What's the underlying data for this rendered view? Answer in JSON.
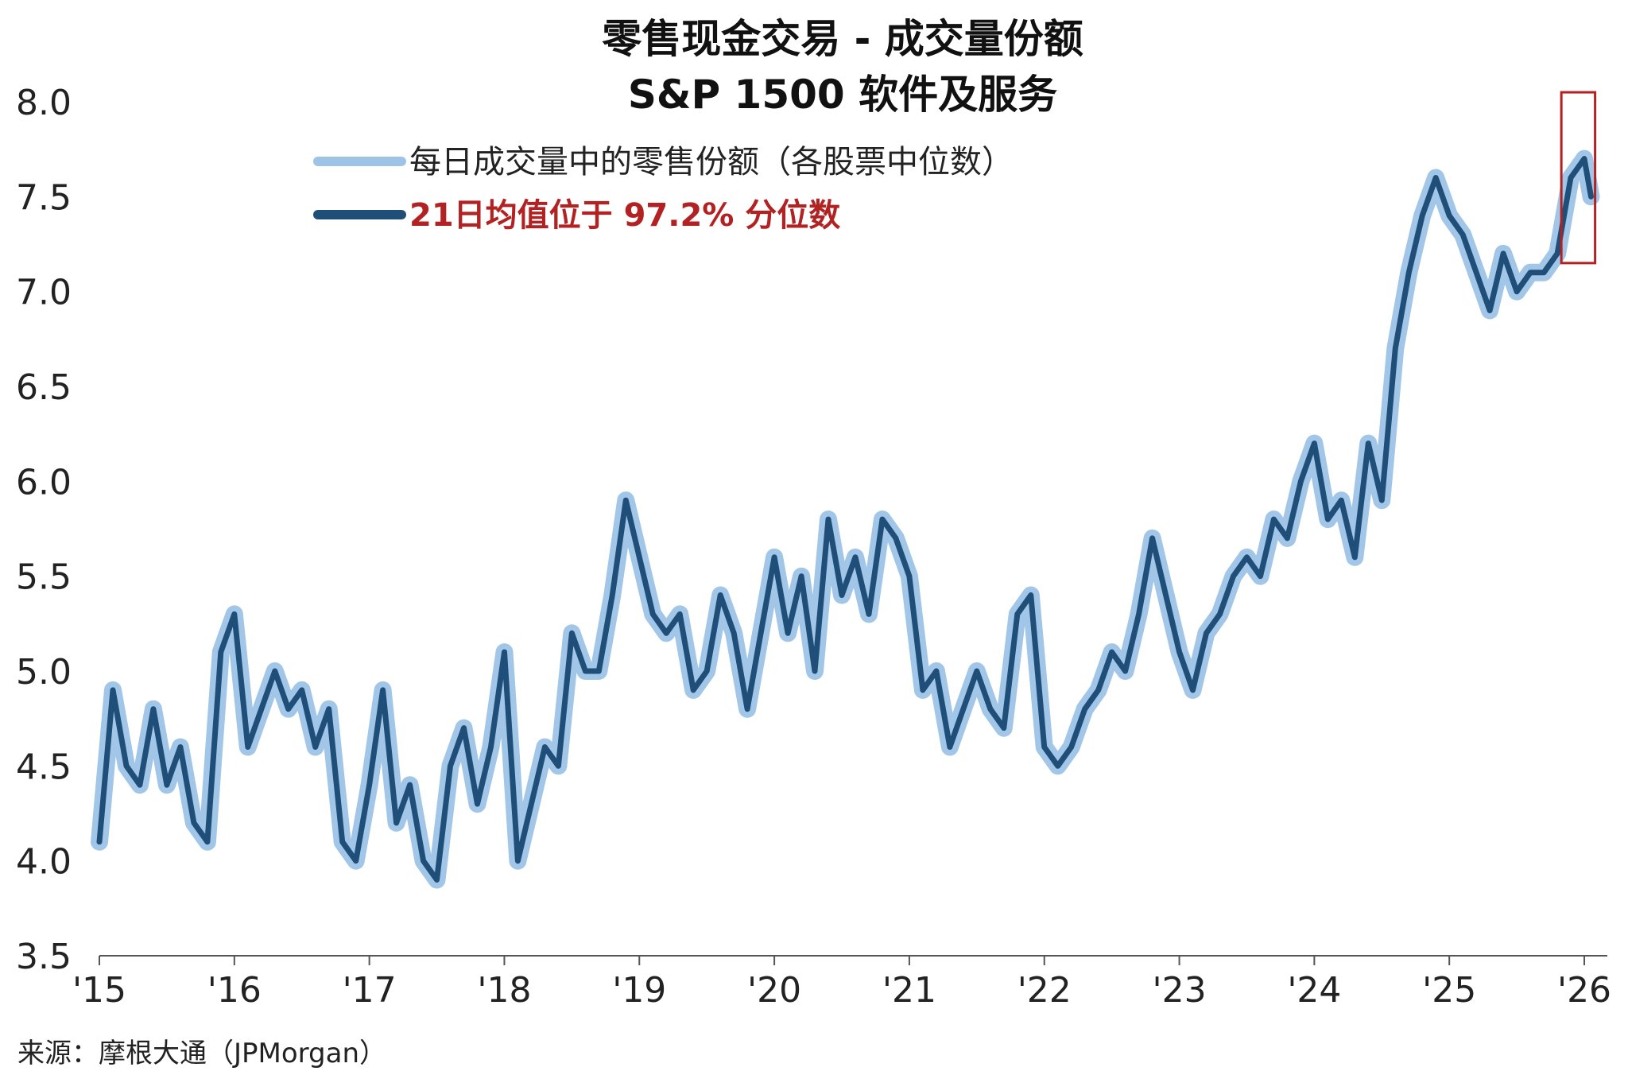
{
  "chart_data": {
    "type": "line",
    "title": "零售现金交易 - 成交量份额",
    "subtitle": "S&P 1500 软件及服务",
    "xlabel": "",
    "ylabel": "",
    "ylim": [
      3.5,
      8.0
    ],
    "yticks": [
      "8.0",
      "7.5",
      "7.0",
      "6.5",
      "6.0",
      "5.5",
      "5.0",
      "4.5",
      "4.0",
      "3.5"
    ],
    "xlim": [
      2015.0,
      2026.1
    ],
    "xticks": [
      {
        "label": "'15",
        "value": 2015
      },
      {
        "label": "'16",
        "value": 2016
      },
      {
        "label": "'17",
        "value": 2017
      },
      {
        "label": "'18",
        "value": 2018
      },
      {
        "label": "'19",
        "value": 2019
      },
      {
        "label": "'20",
        "value": 2020
      },
      {
        "label": "'21",
        "value": 2021
      },
      {
        "label": "'22",
        "value": 2022
      },
      {
        "label": "'23",
        "value": 2023
      },
      {
        "label": "'24",
        "value": 2024
      },
      {
        "label": "'25",
        "value": 2025
      },
      {
        "label": "'26",
        "value": 2026
      }
    ],
    "grid": false,
    "legend_position": "top-left",
    "source": "来源：摩根大通（JPMorgan）",
    "highlight_box": {
      "x_range": [
        2025.83,
        2026.08
      ],
      "y_range": [
        7.15,
        8.05
      ],
      "color": "#b22222"
    },
    "series": [
      {
        "name": "每日成交量中的零售份额（各股票中位数）",
        "color": "#9dc3e6",
        "style": "daily",
        "x": [
          2015.0,
          2015.1,
          2015.2,
          2015.3,
          2015.4,
          2015.5,
          2015.6,
          2015.7,
          2015.8,
          2015.9,
          2016.0,
          2016.1,
          2016.2,
          2016.3,
          2016.4,
          2016.5,
          2016.6,
          2016.7,
          2016.8,
          2016.9,
          2017.0,
          2017.1,
          2017.2,
          2017.3,
          2017.4,
          2017.5,
          2017.6,
          2017.7,
          2017.8,
          2017.9,
          2018.0,
          2018.1,
          2018.2,
          2018.3,
          2018.4,
          2018.5,
          2018.6,
          2018.7,
          2018.8,
          2018.9,
          2019.0,
          2019.1,
          2019.2,
          2019.3,
          2019.4,
          2019.5,
          2019.6,
          2019.7,
          2019.8,
          2019.9,
          2020.0,
          2020.1,
          2020.2,
          2020.3,
          2020.4,
          2020.5,
          2020.6,
          2020.7,
          2020.8,
          2020.9,
          2021.0,
          2021.1,
          2021.2,
          2021.3,
          2021.4,
          2021.5,
          2021.6,
          2021.7,
          2021.8,
          2021.9,
          2022.0,
          2022.1,
          2022.2,
          2022.3,
          2022.4,
          2022.5,
          2022.6,
          2022.7,
          2022.8,
          2022.9,
          2023.0,
          2023.1,
          2023.2,
          2023.3,
          2023.4,
          2023.5,
          2023.6,
          2023.7,
          2023.8,
          2023.9,
          2024.0,
          2024.1,
          2024.2,
          2024.3,
          2024.4,
          2024.5,
          2024.6,
          2024.7,
          2024.8,
          2024.9,
          2025.0,
          2025.1,
          2025.2,
          2025.3,
          2025.4,
          2025.5,
          2025.6,
          2025.7,
          2025.8,
          2025.9,
          2026.0,
          2026.05
        ],
        "y": [
          4.1,
          4.9,
          4.5,
          4.4,
          4.8,
          4.4,
          4.6,
          4.2,
          4.1,
          5.1,
          5.3,
          4.6,
          4.8,
          5.0,
          4.8,
          4.9,
          4.6,
          4.8,
          4.1,
          4.0,
          4.4,
          4.9,
          4.2,
          4.4,
          4.0,
          3.9,
          4.5,
          4.7,
          4.3,
          4.6,
          5.1,
          4.0,
          4.3,
          4.6,
          4.5,
          5.2,
          5.0,
          5.0,
          5.4,
          5.9,
          5.6,
          5.3,
          5.2,
          5.3,
          4.9,
          5.0,
          5.4,
          5.2,
          4.8,
          5.2,
          5.6,
          5.2,
          5.5,
          5.0,
          5.8,
          5.4,
          5.6,
          5.3,
          5.8,
          5.7,
          5.5,
          4.9,
          5.0,
          4.6,
          4.8,
          5.0,
          4.8,
          4.7,
          5.3,
          5.4,
          4.6,
          4.5,
          4.6,
          4.8,
          4.9,
          5.1,
          5.0,
          5.3,
          5.7,
          5.4,
          5.1,
          4.9,
          5.2,
          5.3,
          5.5,
          5.6,
          5.5,
          5.8,
          5.7,
          6.0,
          6.2,
          5.8,
          5.9,
          5.6,
          6.2,
          5.9,
          6.7,
          7.1,
          7.4,
          7.6,
          7.4,
          7.3,
          7.1,
          6.9,
          7.2,
          7.0,
          7.1,
          7.1,
          7.2,
          7.6,
          7.7,
          7.5
        ]
      },
      {
        "name": "21日均值位于 97.2% 分位数",
        "color": "#1f4e79",
        "style": "rolling",
        "x": [
          2015.0,
          2015.1,
          2015.2,
          2015.3,
          2015.4,
          2015.5,
          2015.6,
          2015.7,
          2015.8,
          2015.9,
          2016.0,
          2016.1,
          2016.2,
          2016.3,
          2016.4,
          2016.5,
          2016.6,
          2016.7,
          2016.8,
          2016.9,
          2017.0,
          2017.1,
          2017.2,
          2017.3,
          2017.4,
          2017.5,
          2017.6,
          2017.7,
          2017.8,
          2017.9,
          2018.0,
          2018.1,
          2018.2,
          2018.3,
          2018.4,
          2018.5,
          2018.6,
          2018.7,
          2018.8,
          2018.9,
          2019.0,
          2019.1,
          2019.2,
          2019.3,
          2019.4,
          2019.5,
          2019.6,
          2019.7,
          2019.8,
          2019.9,
          2020.0,
          2020.1,
          2020.2,
          2020.3,
          2020.4,
          2020.5,
          2020.6,
          2020.7,
          2020.8,
          2020.9,
          2021.0,
          2021.1,
          2021.2,
          2021.3,
          2021.4,
          2021.5,
          2021.6,
          2021.7,
          2021.8,
          2021.9,
          2022.0,
          2022.1,
          2022.2,
          2022.3,
          2022.4,
          2022.5,
          2022.6,
          2022.7,
          2022.8,
          2022.9,
          2023.0,
          2023.1,
          2023.2,
          2023.3,
          2023.4,
          2023.5,
          2023.6,
          2023.7,
          2023.8,
          2023.9,
          2024.0,
          2024.1,
          2024.2,
          2024.3,
          2024.4,
          2024.5,
          2024.6,
          2024.7,
          2024.8,
          2024.9,
          2025.0,
          2025.1,
          2025.2,
          2025.3,
          2025.4,
          2025.5,
          2025.6,
          2025.7,
          2025.8,
          2025.9,
          2026.0,
          2026.05
        ],
        "y": [
          4.1,
          4.9,
          4.5,
          4.4,
          4.8,
          4.4,
          4.6,
          4.2,
          4.1,
          5.1,
          5.3,
          4.6,
          4.8,
          5.0,
          4.8,
          4.9,
          4.6,
          4.8,
          4.1,
          4.0,
          4.4,
          4.9,
          4.2,
          4.4,
          4.0,
          3.9,
          4.5,
          4.7,
          4.3,
          4.6,
          5.1,
          4.0,
          4.3,
          4.6,
          4.5,
          5.2,
          5.0,
          5.0,
          5.4,
          5.9,
          5.6,
          5.3,
          5.2,
          5.3,
          4.9,
          5.0,
          5.4,
          5.2,
          4.8,
          5.2,
          5.6,
          5.2,
          5.5,
          5.0,
          5.8,
          5.4,
          5.6,
          5.3,
          5.8,
          5.7,
          5.5,
          4.9,
          5.0,
          4.6,
          4.8,
          5.0,
          4.8,
          4.7,
          5.3,
          5.4,
          4.6,
          4.5,
          4.6,
          4.8,
          4.9,
          5.1,
          5.0,
          5.3,
          5.7,
          5.4,
          5.1,
          4.9,
          5.2,
          5.3,
          5.5,
          5.6,
          5.5,
          5.8,
          5.7,
          6.0,
          6.2,
          5.8,
          5.9,
          5.6,
          6.2,
          5.9,
          6.7,
          7.1,
          7.4,
          7.6,
          7.4,
          7.3,
          7.1,
          6.9,
          7.2,
          7.0,
          7.1,
          7.1,
          7.2,
          7.6,
          7.7,
          7.5
        ]
      }
    ]
  }
}
